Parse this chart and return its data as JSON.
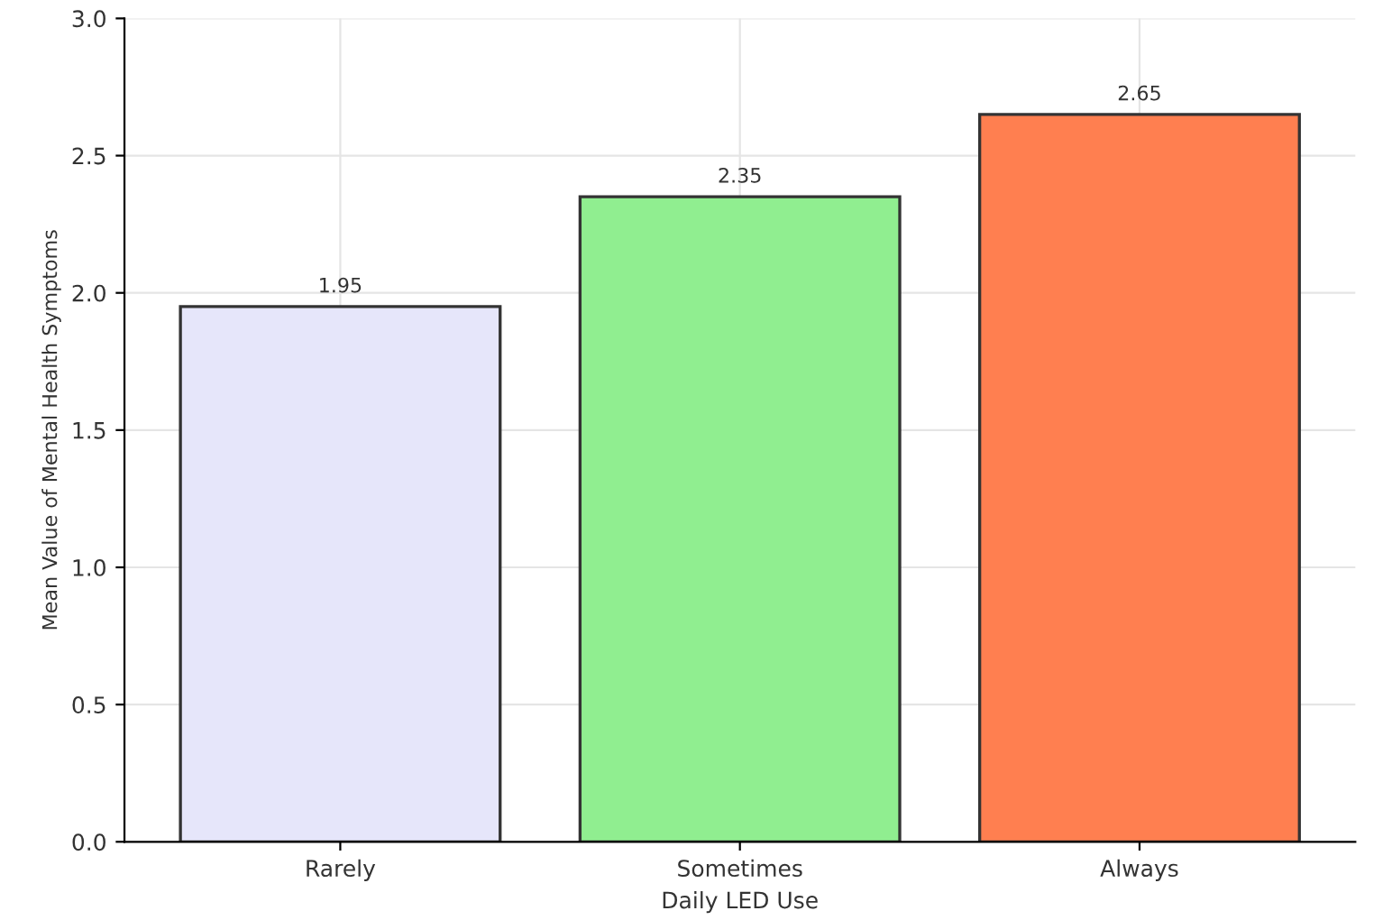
{
  "chart_data": {
    "type": "bar",
    "xlabel": "Daily LED Use",
    "ylabel": "Mean Value of Mental Health Symptoms",
    "categories": [
      "Rarely",
      "Sometimes",
      "Always"
    ],
    "values": [
      1.95,
      2.35,
      2.65
    ],
    "colors": [
      "#e6e6fa",
      "#90ee90",
      "#ff7f50"
    ],
    "ylim": [
      0,
      3
    ],
    "yticks": [
      {
        "value": 0,
        "label": "0.0"
      },
      0.5,
      {
        "value": 1,
        "label": "1.0"
      },
      1.5,
      {
        "value": 2,
        "label": "2.0"
      },
      2.5,
      {
        "value": 3,
        "label": "3.0"
      }
    ],
    "grid": true,
    "data_labels": true
  }
}
